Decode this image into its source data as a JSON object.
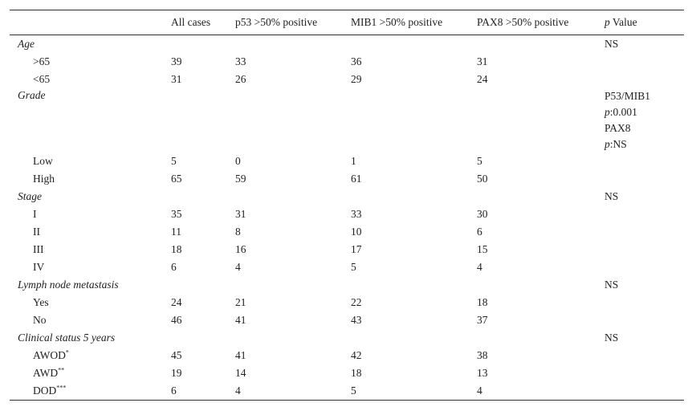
{
  "table": {
    "header": [
      "All cases",
      "p53 >50% positive",
      "MIB1 >50% positive",
      "PAX8 >50% positive",
      {
        "italic": "p",
        "text": " Value"
      }
    ],
    "rows": [
      {
        "label": "Age",
        "p": "NS"
      },
      {
        "label": ">65",
        "values": [
          39,
          33,
          36,
          31
        ]
      },
      {
        "label": "<65",
        "values": [
          31,
          26,
          29,
          24
        ]
      },
      {
        "label": "Grade",
        "p": [
          "P53/MIB1",
          {
            "italic": "p",
            "text": ":0.001"
          },
          "PAX8",
          {
            "italic": "p",
            "text": ":NS"
          }
        ]
      },
      {
        "label": "Low",
        "values": [
          5,
          0,
          1,
          5
        ]
      },
      {
        "label": "High",
        "values": [
          65,
          59,
          61,
          50
        ]
      },
      {
        "label": "Stage",
        "p": "NS"
      },
      {
        "label": "I",
        "values": [
          35,
          31,
          33,
          30
        ]
      },
      {
        "label": "II",
        "values": [
          11,
          8,
          10,
          6
        ]
      },
      {
        "label": "III",
        "values": [
          18,
          16,
          17,
          15
        ]
      },
      {
        "label": "IV",
        "values": [
          6,
          4,
          5,
          4
        ]
      },
      {
        "label": "Lymph node metastasis",
        "p": "NS"
      },
      {
        "label": "Yes",
        "values": [
          24,
          21,
          22,
          18
        ]
      },
      {
        "label": "No",
        "values": [
          46,
          41,
          43,
          37
        ]
      },
      {
        "label": "Clinical status 5 years",
        "p": "NS"
      },
      {
        "label": "AWOD",
        "sup": "*",
        "values": [
          45,
          41,
          42,
          38
        ]
      },
      {
        "label": "AWD",
        "sup": "**",
        "values": [
          19,
          14,
          18,
          13
        ]
      },
      {
        "label": "DOD",
        "sup": "***",
        "values": [
          6,
          4,
          5,
          4
        ]
      }
    ]
  }
}
